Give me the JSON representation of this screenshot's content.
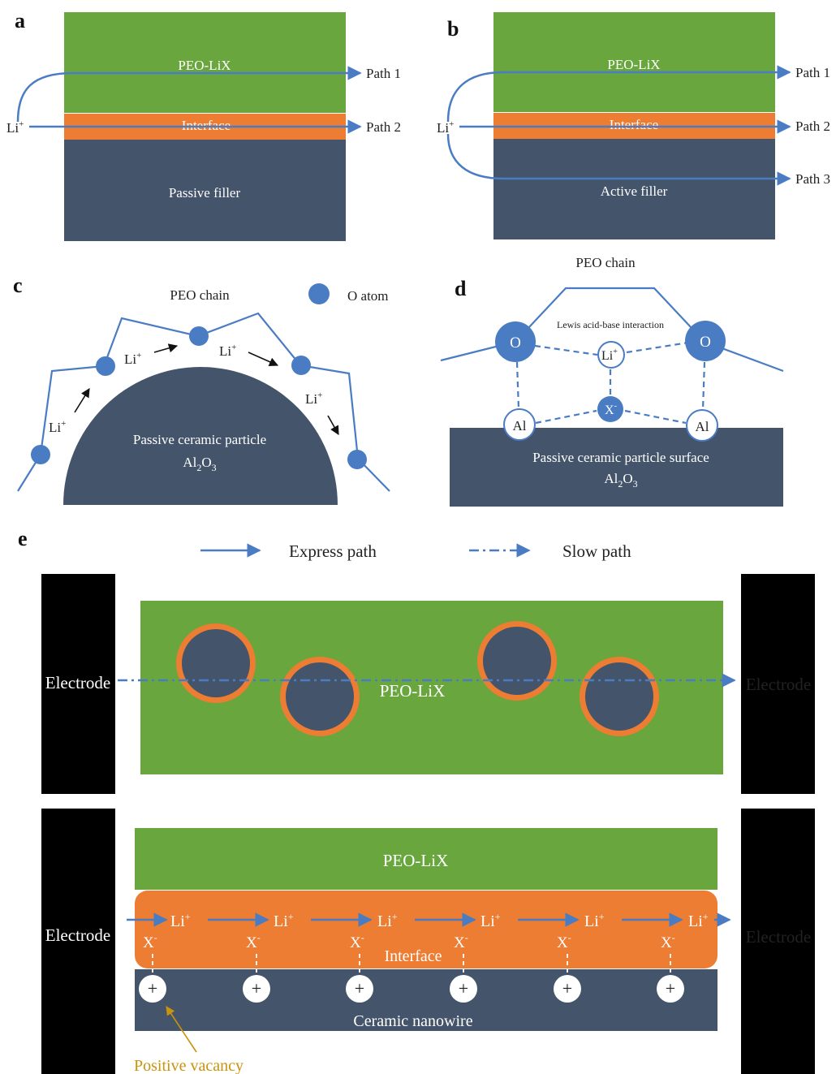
{
  "colors": {
    "peo": "#6aa63e",
    "interface": "#ec7d32",
    "filler": "#44546a",
    "path": "#4a7cc3",
    "electrode": "#000000",
    "vacancy_label": "#c9930b"
  },
  "panel_a": {
    "letter": "a",
    "peo": "PEO-LiX",
    "interface": "Interface",
    "filler": "Passive filler",
    "li": "Li",
    "li_sup": "+",
    "path1": "Path 1",
    "path2": "Path 2"
  },
  "panel_b": {
    "letter": "b",
    "peo": "PEO-LiX",
    "interface": "Interface",
    "filler": "Active filler",
    "li": "Li",
    "li_sup": "+",
    "path1": "Path 1",
    "path2": "Path 2",
    "path3": "Path 3"
  },
  "panel_c": {
    "letter": "c",
    "chain_label": "PEO chain",
    "o_atom_legend": "O atom",
    "particle_line1": "Passive ceramic particle",
    "particle_line2_base": "Al",
    "particle_line2_sub1": "2",
    "particle_line2_mid": "O",
    "particle_line2_sub2": "3",
    "li": "Li",
    "li_sup": "+"
  },
  "panel_d": {
    "letter": "d",
    "chain_label": "PEO chain",
    "interaction": "Lewis acid-base interaction",
    "o": "O",
    "al": "Al",
    "li": "Li",
    "li_sup": "+",
    "x": "X",
    "x_sup": "-",
    "surface_line1": "Passive ceramic particle surface",
    "surface_line2_base": "Al",
    "surface_line2_sub1": "2",
    "surface_line2_mid": "O",
    "surface_line2_sub2": "3"
  },
  "panel_e": {
    "letter": "e",
    "legend_express": "Express path",
    "legend_slow": "Slow path",
    "electrode": "Electrode",
    "peo": "PEO-LiX",
    "interface": "Interface",
    "nanowire": "Ceramic nanowire",
    "li": "Li",
    "li_sup": "+",
    "x": "X",
    "x_sup": "-",
    "plus": "+",
    "vacancy": "Positive vacancy"
  }
}
